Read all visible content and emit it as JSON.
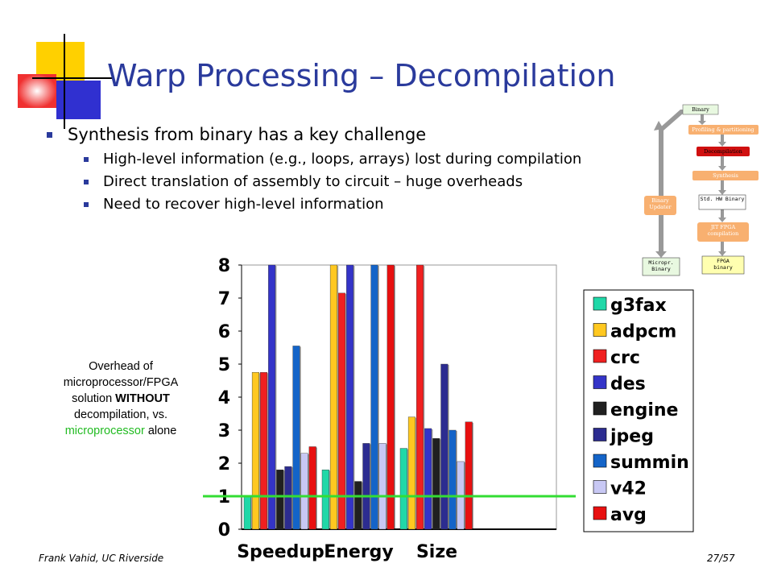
{
  "title": "Warp Processing – Decompilation",
  "bullets": [
    {
      "level": 1,
      "text": "Synthesis from binary has a key challenge"
    },
    {
      "level": 2,
      "text": "High-level information (e.g., loops, arrays) lost during compilation"
    },
    {
      "level": 2,
      "text": "Direct translation of assembly to circuit – huge overheads"
    },
    {
      "level": 2,
      "text": "Need to recover high-level information"
    }
  ],
  "diagram": {
    "nodes": [
      "Binary",
      "Profiling & partitioning",
      "Decompilation",
      "Synthesis",
      "Std. HW Binary",
      "JIT FPGA compilation",
      "FPGA binary",
      "Binary Updater",
      "Micropr. Binary"
    ]
  },
  "annotation": {
    "parts": [
      "Overhead of microprocessor/FPGA solution ",
      "WITHOUT",
      " decompilation, vs. ",
      "microprocessor",
      " alone"
    ]
  },
  "footer": {
    "left": "Frank Vahid, UC Riverside",
    "right": "27/57"
  },
  "chart_data": {
    "type": "bar",
    "categories": [
      "Speedup",
      "Energy",
      "Size",
      null
    ],
    "ylim": [
      0,
      8
    ],
    "yticks": [
      0,
      1,
      2,
      3,
      4,
      5,
      6,
      7,
      8
    ],
    "reference_line": 1,
    "reference_color": "#33dd33",
    "legend": "right",
    "series": [
      {
        "name": "g3fax",
        "color": "#20d8a8",
        "values": [
          1,
          1.8,
          2.45,
          null
        ]
      },
      {
        "name": "adpcm",
        "color": "#ffc820",
        "values": [
          4.75,
          8,
          3.4,
          null
        ]
      },
      {
        "name": "crc",
        "color": "#f02020",
        "values": [
          4.75,
          7.15,
          8,
          null
        ]
      },
      {
        "name": "des",
        "color": "#3434c8",
        "values": [
          8,
          8,
          3.05,
          null
        ]
      },
      {
        "name": "engine",
        "color": "#202020",
        "values": [
          1.8,
          1.45,
          2.75,
          null
        ]
      },
      {
        "name": "jpeg",
        "color": "#2c2c90",
        "values": [
          1.9,
          2.6,
          5,
          null
        ]
      },
      {
        "name": "summin",
        "color": "#1464c8",
        "values": [
          5.55,
          8,
          3,
          null
        ]
      },
      {
        "name": "v42",
        "color": "#c8c8f4",
        "values": [
          2.3,
          2.6,
          2.05,
          null
        ]
      },
      {
        "name": "avg",
        "color": "#e81010",
        "values": [
          2.5,
          8,
          3.25,
          null
        ]
      }
    ]
  }
}
